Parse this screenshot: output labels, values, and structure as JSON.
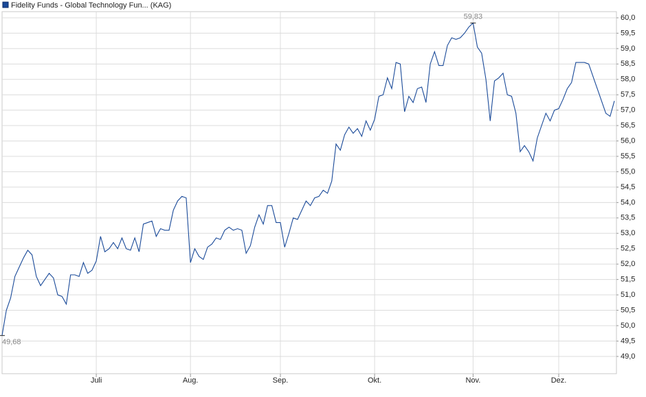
{
  "chart_data": {
    "type": "line",
    "series": [
      {
        "name": "Fidelity Funds - Global Technology Fun... (KAG)",
        "color": "#1a4a99",
        "values": [
          49.68,
          50.5,
          50.9,
          51.6,
          51.9,
          52.2,
          52.45,
          52.3,
          51.6,
          51.3,
          51.5,
          51.7,
          51.55,
          51.0,
          50.95,
          50.7,
          51.65,
          51.65,
          51.6,
          52.05,
          51.7,
          51.8,
          52.1,
          52.9,
          52.4,
          52.5,
          52.7,
          52.5,
          52.85,
          52.5,
          52.45,
          52.85,
          52.4,
          53.3,
          53.35,
          53.4,
          52.9,
          53.15,
          53.1,
          53.1,
          53.75,
          54.05,
          54.2,
          54.15,
          52.05,
          52.5,
          52.25,
          52.15,
          52.55,
          52.65,
          52.85,
          52.8,
          53.1,
          53.2,
          53.1,
          53.15,
          53.1,
          52.35,
          52.6,
          53.2,
          53.6,
          53.3,
          53.9,
          53.9,
          53.35,
          53.35,
          52.55,
          53.0,
          53.5,
          53.45,
          53.75,
          54.05,
          53.9,
          54.15,
          54.2,
          54.4,
          54.3,
          54.7,
          55.9,
          55.7,
          56.2,
          56.45,
          56.25,
          56.4,
          56.15,
          56.65,
          56.35,
          56.7,
          57.45,
          57.5,
          58.05,
          57.7,
          58.55,
          58.5,
          56.95,
          57.45,
          57.25,
          57.7,
          57.75,
          57.25,
          58.5,
          58.9,
          58.45,
          58.45,
          59.1,
          59.35,
          59.3,
          59.35,
          59.5,
          59.7,
          59.83,
          59.05,
          58.85,
          58.0,
          56.65,
          57.95,
          58.05,
          58.2,
          57.5,
          57.45,
          56.9,
          55.65,
          55.85,
          55.65,
          55.35,
          56.1,
          56.5,
          56.9,
          56.65,
          57.0,
          57.05,
          57.35,
          57.7,
          57.9,
          58.55,
          58.55,
          58.55,
          58.5,
          58.1,
          57.7,
          57.3,
          56.9,
          56.8,
          57.3
        ],
        "value_labels": [
          "49,68",
          null,
          null,
          null,
          null,
          null,
          null,
          null,
          null,
          null,
          null,
          null,
          null,
          null,
          null,
          null,
          null,
          null,
          null,
          null,
          null,
          null,
          null,
          null,
          null,
          null,
          null,
          null,
          null,
          null,
          null,
          null,
          null,
          null,
          null,
          null,
          null,
          null,
          null,
          null,
          null,
          null,
          null,
          null,
          null,
          null,
          null,
          null,
          null,
          null,
          null,
          null,
          null,
          null,
          null,
          null,
          null,
          null,
          null,
          null,
          null,
          null,
          null,
          null,
          null,
          null,
          null,
          null,
          null,
          null,
          null,
          null,
          null,
          null,
          null,
          null,
          null,
          null,
          null,
          null,
          null,
          null,
          null,
          null,
          null,
          null,
          null,
          null,
          null,
          null,
          null,
          null,
          null,
          null,
          null,
          null,
          null,
          null,
          null,
          null,
          null,
          null,
          null,
          null,
          null,
          null,
          null,
          null,
          null,
          null,
          "59,83",
          null,
          null,
          null,
          null,
          null,
          null,
          null,
          null,
          null,
          null,
          null,
          null,
          null,
          null,
          null,
          null,
          null,
          null,
          null,
          null,
          null,
          null,
          null,
          null,
          null,
          null,
          null,
          null,
          null,
          null,
          null,
          null
        ]
      }
    ],
    "categories": [
      null,
      null,
      null,
      null,
      null,
      null,
      null,
      null,
      null,
      null,
      null,
      null,
      null,
      null,
      null,
      null,
      null,
      null,
      null,
      null,
      null,
      null,
      "Juli",
      null,
      null,
      null,
      null,
      null,
      null,
      null,
      null,
      null,
      null,
      null,
      null,
      null,
      null,
      null,
      null,
      null,
      null,
      null,
      null,
      null,
      "Aug.",
      null,
      null,
      null,
      null,
      null,
      null,
      null,
      null,
      null,
      null,
      null,
      null,
      null,
      null,
      null,
      null,
      null,
      null,
      null,
      null,
      "Sep.",
      null,
      null,
      null,
      null,
      null,
      null,
      null,
      null,
      null,
      null,
      null,
      null,
      null,
      null,
      null,
      null,
      null,
      null,
      null,
      null,
      null,
      "Okt.",
      null,
      null,
      null,
      null,
      null,
      null,
      null,
      null,
      null,
      null,
      null,
      null,
      null,
      null,
      null,
      null,
      null,
      null,
      null,
      null,
      null,
      null,
      "Nov.",
      null,
      null,
      null,
      null,
      null,
      null,
      null,
      null,
      null,
      null,
      null,
      null,
      null,
      null,
      null,
      null,
      null,
      null,
      null,
      "Dez.",
      null,
      null,
      null,
      null,
      null,
      null,
      null,
      null,
      null,
      null,
      null,
      null,
      null
    ],
    "ylim": [
      48.44,
      60.2
    ],
    "yticks": [
      {
        "value": 49,
        "label": "49,0"
      },
      {
        "value": 49.5,
        "label": "49,5"
      },
      {
        "value": 50,
        "label": "50,0"
      },
      {
        "value": 50.5,
        "label": "50,5"
      },
      {
        "value": 51,
        "label": "51,0"
      },
      {
        "value": 51.5,
        "label": "51,5"
      },
      {
        "value": 52,
        "label": "52,0"
      },
      {
        "value": 52.5,
        "label": "52,5"
      },
      {
        "value": 53,
        "label": "53,0"
      },
      {
        "value": 53.5,
        "label": "53,5"
      },
      {
        "value": 54,
        "label": "54,0"
      },
      {
        "value": 54.5,
        "label": "54,5"
      },
      {
        "value": 55,
        "label": "55,0"
      },
      {
        "value": 55.5,
        "label": "55,5"
      },
      {
        "value": 56,
        "label": "56,0"
      },
      {
        "value": 56.5,
        "label": "56,5"
      },
      {
        "value": 57,
        "label": "57,0"
      },
      {
        "value": 57.5,
        "label": "57,5"
      },
      {
        "value": 58,
        "label": "58,0"
      },
      {
        "value": 58.5,
        "label": "58,5"
      },
      {
        "value": 59,
        "label": "59,0"
      },
      {
        "value": 59.5,
        "label": "59,5"
      },
      {
        "value": 60,
        "label": "60,0"
      }
    ],
    "grid": true
  }
}
